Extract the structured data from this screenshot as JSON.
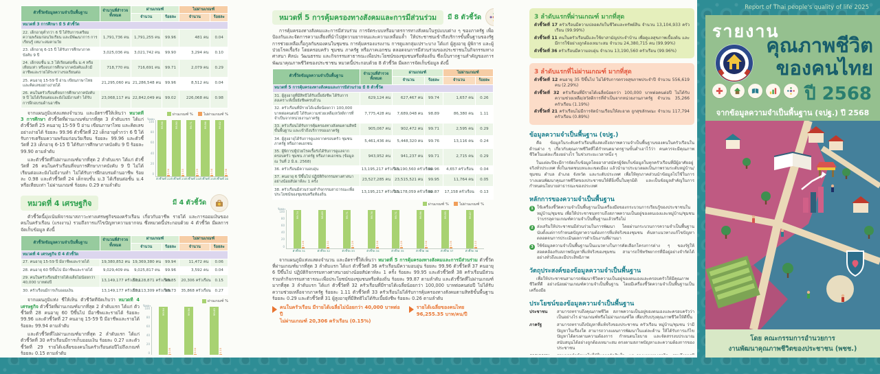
{
  "colors": {
    "pattern_teal": "#2e8d95",
    "sheet": "#fbfcf8",
    "cover_green": "#95c08f",
    "accent_green": "#2fa14f",
    "accent_teal": "#1b7f8d",
    "bar_pass": "#a8d272",
    "bar_fail": "#f09f5a",
    "callout_orange": "#e8732f",
    "section_lavender": "#dcd6ee"
  },
  "tables": {
    "headers": {
      "indicator": "ตัวชี้วัดข้อมูลความจำเป็นพื้นฐาน",
      "total": "จำนวนที่สำรวจทั้งหมด",
      "pass": "ผ่านเกณฑ์",
      "fail": "ไม่ผ่านเกณฑ์",
      "count": "จำนวน",
      "percent": "ร้อยละ"
    },
    "t3edu": {
      "section": "หมวดที่ 3 การศึกษา มี 5 ตัวชี้วัด",
      "rows": [
        [
          "22. เด็กอายุต่ำกว่า 6 ปี ได้รับการเตรียมความพร้อมก่อนวัยเรียน และมีพัฒนาการ การเรียนรู้ เหมาะสมตามวัย",
          "1,791,736 คน",
          "1,791,255 คน",
          "99.96",
          "481 คน",
          "0.04"
        ],
        [
          "23. เด็กอายุ 6-15 ปี ได้รับการศึกษาภาคบังคับ 9 ปี",
          "3,025,036 คน",
          "3,021,742 คน",
          "99.90",
          "3,294 คน",
          "0.10"
        ],
        [
          "24. เด็กจบชั้น ม.3 ได้เรียนต่อชั้น ม.4 หรือเทียบเท่า หรือจบการศึกษาภาคบังคับแล้วมีอาชีพและรายได้ระหว่างรอเรียนต่อ",
          "718,770 คน",
          "716,691 คน",
          "99.71",
          "2,079 คน",
          "0.29"
        ],
        [
          "25. คนอายุ 15-59 ปี อ่าน เขียนภาษาไทย และคิดเลขอย่างง่ายได้",
          "21,295,060 คน",
          "21,286,548 คน",
          "99.96",
          "8,512 คน",
          "0.04"
        ],
        [
          "26. คนในครัวเรือนที่จบการศึกษาภาคบังคับ 9 ปี ไม่ได้เรียนต่อและยังไม่มีงานทำ ได้รับการฝึกอบรมด้านอาชีพ",
          "23,068,117 คน",
          "22,842,049 คน",
          "99.02",
          "226,068 คน",
          "0.98"
        ]
      ]
    },
    "t4econ": {
      "section": "หมวดที่ 4 เศรษฐกิจ มี 4 ตัวชี้วัด",
      "rows": [
        [
          "27. คนอายุ 15-59 ปี มีอาชีพและรายได้",
          "19,380,852 คน",
          "19,369,380 คน",
          "99.94",
          "11,472 คน",
          "0.06"
        ],
        [
          "28. คนอายุ 60 ปีขึ้นไป มีอาชีพและรายได้",
          "9,029,409 คน",
          "9,025,817 คน",
          "99.96",
          "3,592 คน",
          "0.04"
        ],
        [
          "29. คนในครัวเรือนมีรายได้เฉลี่ยไม่น้อยกว่า 40,000 บาทต่อปี",
          "13,149,177 ครัวเรือน",
          "13,128,871 ครัวเรือน",
          "99.85",
          "20,306 ครัวเรือน",
          "0.15"
        ],
        [
          "30. ครัวเรือนมีการเก็บออมเงิน",
          "13,149,177 ครัวเรือน",
          "13,113,309 ครัวเรือน",
          "99.73",
          "35,868 ครัวเรือน",
          "0.27"
        ]
      ]
    },
    "t5social": {
      "section": "หมวดที่ 5 การคุ้มครองทางสังคมและการมีส่วนร่วม มี 8 ตัวชี้วัด",
      "rows": [
        [
          "31. ผู้สูงอายุที่มีสิทธิได้รับเบี้ยยังชีพ ได้รับการสงเคราะห์เบี้ยยังชีพครบถ้วน",
          "629,124 คน",
          "627,467 คน",
          "99.74",
          "1,657 คน",
          "0.26"
        ],
        [
          "32. ครัวเรือนที่มีรายได้เฉลี่ยน้อยกว่า 100,000 บาทต่อคนต่อปี ได้รับความช่วยเหลือ/สวัสดิการที่จำเป็นจากหน่วยงานภาครัฐ",
          "7,775,428 คน",
          "7,689,048 คน",
          "98.89",
          "86,380 คน",
          "1.11"
        ],
        [
          "33. ครัวเรือนได้รับการคุ้มครองทางสังคมตามสิทธิขั้นพื้นฐาน และเข้าถึงบริการของภาครัฐ",
          "905,067 คน",
          "902,472 คน",
          "99.71",
          "2,595 คน",
          "0.29"
        ],
        [
          "34. ผู้สูงอายุได้รับการดูแลจากครอบครัว ชุมชน ภาครัฐ หรือภาคเอกชน",
          "5,461,436 คน",
          "5,448,320 คน",
          "99.76",
          "13,116 คน",
          "0.24"
        ],
        [
          "35. ผู้พิการ/ผู้ป่วยโรคเรื้อรังได้รับการดูแลจากครอบครัว ชุมชน ภาครัฐ หรือภาคเอกชน (ข้อมูล ณ วันที่ 2 มิ.ย. 2568)",
          "943,952 คน",
          "941,237 คน",
          "99.71",
          "2,715 คน",
          "0.29"
        ],
        [
          "36. ครัวเรือนมีความอบอุ่น",
          "13,195,217 ครัวเรือน",
          "13,190,560 ครัวเรือน",
          "99.96",
          "4,657 ครัวเรือน",
          "0.04"
        ],
        [
          "37. คนอายุ 6 ปีขึ้นไป ปฏิบัติกิจกรรมทางศาสนาอย่างน้อยสัปดาห์ละ 1 ครั้ง",
          "23,527,285 คน",
          "23,515,521 คน",
          "99.95",
          "11,764 คน",
          "0.05"
        ],
        [
          "38. ครัวเรือนมีส่วนร่วมทำกิจกรรมสาธารณะเพื่อประโยชน์ของชุมชนหรือท้องถิ่น",
          "13,195,217 ครัวเรือน",
          "13,178,059 ครัวเรือน",
          "99.87",
          "17,158 ครัวเรือน",
          "0.13"
        ]
      ]
    }
  },
  "charts": {
    "c3edu": {
      "axis_title": "ร้อยละ",
      "ticks": [
        100,
        80,
        60,
        40,
        20,
        0
      ],
      "legend_pass": "ผ่านเกณฑ์ %",
      "legend_fail": "ไม่ผ่านเกณฑ์ %",
      "labels": [
        "ตัวชี้วัดที่ 22",
        "ตัวชี้วัดที่ 23",
        "ตัวชี้วัดที่ 24",
        "ตัวชี้วัดที่ 25",
        "ตัวชี้วัดที่ 26"
      ],
      "pass": [
        99.96,
        99.9,
        99.71,
        99.96,
        99.02
      ],
      "fail": [
        0.04,
        0.1,
        0.29,
        0.04,
        0.98
      ]
    },
    "c4econ": {
      "axis_title": "ร้อยละ",
      "ticks": [
        100,
        80,
        60,
        40,
        20,
        0
      ],
      "legend_pass": "ผ่านเกณฑ์ %",
      "labels": [
        "ตัวชี้วัด 27",
        "ตัวชี้วัด 28",
        "ตัวชี้วัด 29"
      ],
      "pass": [
        99.94,
        99.96,
        99.85
      ],
      "fail": [
        0.06,
        0.04,
        0.15
      ]
    },
    "c5social": {
      "axis_title": "ร้อยละ",
      "ticks": [
        100,
        80,
        60,
        40,
        20,
        0
      ],
      "legend_pass": "ผ่านเกณฑ์ %",
      "legend_fail": "ไม่ผ่านเกณฑ์ %",
      "labels": [
        "ตัวชี้วัด 31",
        "ตัวชี้วัด 32",
        "ตัวชี้วัด 33",
        "ตัวชี้วัด 34",
        "ตัวชี้วัด 35",
        "ตัวชี้วัด 36",
        "ตัวชี้วัด 37",
        "ตัวชี้วัด 38"
      ],
      "pass": [
        99.74,
        98.89,
        99.71,
        99.76,
        99.71,
        99.96,
        99.95,
        99.87
      ],
      "fail": [
        0.26,
        1.11,
        0.29,
        0.24,
        0.29,
        0.04,
        0.05,
        0.13
      ]
    }
  },
  "panel1": {
    "edu_lead": "จากแผนภูมิแท่งแสดงจำนวน และอัตราชี้ให้เห็นว่า ",
    "edu_hl": "หมวดที่ 3 การศึกษา",
    "edu_rest": " ตัวชี้วัดที่ผ่านเกณฑ์มากที่สุด 3 ลำดับแรก ได้แก่ ตัวชี้วัดที่ 25 คนอายุ 15-59 ปี อ่าน เขียนภาษาไทย และคิดเลขอย่างง่ายได้ ร้อยละ 99.96 ตัวชี้วัดที่ 22 เด็กอายุต่ำกว่า 6 ปี ได้รับการเตรียมความพร้อมก่อนวัยเรียน ร้อยละ 99.96 และตัวชี้วัดที่ 23 เด็กอายุ 6-15 ปี ได้รับการศึกษาภาคบังคับ 9 ปี ร้อยละ 99.90 ตามลำดับ",
    "edu_summary2": "และตัวชี้วัดที่ไม่ผ่านเกณฑ์มากที่สุด 2 ลำดับแรก ได้แก่ ตัวชี้วัดที่ 26 คนในครัวเรือนที่จบการศึกษาภาคบังคับ 9 ปี ไม่ได้เรียนต่อและยังไม่มีงานทำ ไม่ได้รับการฝึกอบรมด้านอาชีพ ร้อยละ 0.98 และตัวชี้วัดที่ 24 เด็กจบชั้น ม.3 ได้เรียนต่อชั้น ม.4 หรือเทียบเท่า ไม่ผ่านเกณฑ์ ร้อยละ 0.29 ตามลำดับ",
    "econ_heading": "หมวดที่ 4 เศรษฐกิจ",
    "econ_badge": "มี 4 ตัวชี้วัด",
    "econ_intro": "ตัวชี้วัดนี้มุ่งเน้นพิจารณาสภาวะทางเศรษฐกิจของครัวเรือน เกี่ยวกับอาชีพ รายได้ และการออมเงินของคนในครัวเรือน (แรงงาน) รวมถึงการแก้ไขปัญหาความยากจน ซึ่งหมวดนี้ประกอบด้วย 4 ตัวชี้วัด มีผลการจัดเก็บข้อมูล ดังนี้",
    "econ_lead": "จากแผนภูมิแท่ง ชี้ให้เห็น ตัวชี้วัดที่จัดเก็บว่า ",
    "econ_hl": "หมวดที่ 4 เศรษฐกิจ",
    "econ_rest": " ตัวชี้วัดที่ผ่านเกณฑ์มากที่สุด 2 ลำดับแรก ได้แก่ ตัวชี้วัดที่ 28 คนอายุ 60 ปีขึ้นไป มีอาชีพและรายได้ ร้อยละ 99.96 และตัวชี้วัดที่ 27 คนอายุ 15-59 ปี มีอาชีพและรายได้ ร้อยละ 99.94 ตามลำดับ",
    "econ_summary2": "และตัวชี้วัดที่ไม่ผ่านเกณฑ์มากที่สุด 2 ลำดับแรก ได้แก่ ตัวชี้วัดที่ 30 ครัวเรือนมีการเก็บออมเงิน ร้อยละ 0.27 และตัวชี้วัดที่ 29 รายได้เฉลี่ยของคนในครัวเรือนต่อปีไม่ถึงเกณฑ์ ร้อยละ 0.15 ตามลำดับ"
  },
  "panel2": {
    "heading": "หมวดที่ 5 การคุ้มครองทางสังคมและการมีส่วนร่วม",
    "badge": "มี 8 ตัวชี้วัด",
    "intro": "การคุ้มครองทางสังคมและการมีส่วนร่วม การจัดระบบหรือมาตรการทางสังคมในรูปแบบต่าง ๆ ของภาครัฐ เพื่อป้องกันและจัดการความเสี่ยงที่นำไปสู่ความยากจนและความเหลื่อมล้ำ ให้ประชาชนเข้าถึงบริการขั้นพื้นฐานของรัฐ การช่วยเหลือเกื้อกูลกันของคนในชุมชน การคุ้มครองแรงงาน การดูแลกลุ่มเปราะบาง ได้แก่ ผู้สูงอายุ ผู้พิการ และผู้ป่วยโรคเรื้อรัง โดยครอบครัว ชุมชน ภาครัฐ หรือภาคเอกชน ตลอดจนการมีส่วนร่วมของประชาชนในกิจกรรมทางศาสนา ศิลปะ วัฒนธรรม และกิจกรรมสาธารณะเพื่อประโยชน์ของชุมชนหรือท้องถิ่น ซึ่งเป็นรากฐานสำคัญของการพัฒนาคุณภาพชีวิตของประชาชน หมวดนี้ประกอบด้วย 8 ตัวชี้วัด มีผลการจัดเก็บข้อมูล ดังนี้",
    "sum_lead": "จากแผนภูมิแท่งแสดงจำนวน และอัตราชี้ให้เห็นว่า ",
    "sum_hl": "หมวดที่ 5 การคุ้มครองทางสังคมและ",
    "sum_hl2": "การมีส่วนร่วม",
    "sum_rest": " ตัวชี้วัดที่ผ่านเกณฑ์มากที่สุด 3 ลำดับแรก ได้แก่ ตัวชี้วัดที่ 36 ครัวเรือนมีความอบอุ่น ร้อยละ 99.96 ตัวชี้วัดที่ 37 คนอายุ 6 ปีขึ้นไป ปฏิบัติกิจกรรมทางศาสนาอย่างน้อยสัปดาห์ละ 1 ครั้ง ร้อยละ 99.95 และตัวชี้วัดที่ 38 ครัวเรือนมีส่วนร่วมทำกิจกรรมสาธารณะเพื่อประโยชน์ของชุมชนหรือท้องถิ่น ร้อยละ 99.87 ตามลำดับ และตัวชี้วัดที่ไม่ผ่านเกณฑ์มากที่สุด 3 ลำดับแรก ได้แก่ ตัวชี้วัดที่ 32 ครัวเรือนที่มีรายได้เฉลี่ยน้อยกว่า 100,000 บาทต่อคนต่อปี ไม่ได้รับความช่วยเหลือจากภาครัฐ ร้อยละ 1.11 ตัวชี้วัดที่ 33 ครัวเรือนไม่ได้รับการคุ้มครองทางสังคมตามสิทธิขั้นพื้นฐาน ร้อยละ 0.29 และตัวชี้วัดที่ 31 ผู้สูงอายุที่มีสิทธิไม่ได้รับเบี้ยยังชีพ ร้อยละ 0.26 ตามลำดับ",
    "callout1_line1": "คนในครัวเรือน มีรายได้เฉลี่ยไม่น้อยกว่า 40,000 บาทต่อปี",
    "callout1_line2": "ไม่ผ่านเกณฑ์ 20,306 ครัวเรือน (0.15%)",
    "callout2_line1": "รายได้เฉลี่ยของคนไทย",
    "callout2_line2": "96,255.35 บาท/คน/ปี"
  },
  "panel3": {
    "top_pass_title": "3 ลำดับแรกที่ผ่านเกณฑ์ มากที่สุด",
    "top_pass_items": [
      {
        "tag": "ตัวชี้วัดที่ 17",
        "text": "ครัวเรือนมีความปลอดภัยในชีวิตและทรัพย์สิน จำนวน 13,104,933 ครัวเรือน (99.99%)"
      },
      {
        "tag": "ตัวชี้วัดที่ 11",
        "text": "คนในครัวเรือนมีและใช้ยาสามัญประจำบ้าน เพื่อดูแลสุขภาพเบื้องต้น และมีการใช้อย่างถูกต้องเหมาะสม จำนวน 24,380,715 คน (99.99%)"
      },
      {
        "tag": "ตัวชี้วัดที่ 36",
        "text": "ครัวเรือนมีความอบอุ่น จำนวน 13,190,560 ครัวเรือน (99.96%)"
      }
    ],
    "top_fail_title": "3 ลำดับแรกที่ไม่ผ่านเกณฑ์ มากที่สุด",
    "top_fail_items": [
      {
        "tag": "ตัวชี้วัดที่ 12",
        "text": "คนอายุ 35 ปีขึ้นไป ไม่ได้รับการตรวจสุขภาพประจำปี จำนวน 556,619 คน (2.29%)"
      },
      {
        "tag": "ตัวชี้วัดที่ 32",
        "text": "ครัวเรือนที่มีรายได้เฉลี่ยน้อยกว่า 100,000 บาทต่อคนต่อปี ไม่ได้รับความช่วยเหลือ/สวัสดิการที่จำเป็นจากหน่วยงานภาครัฐ จำนวน 35,266 ครัวเรือน (1.19%)"
      },
      {
        "tag": "ตัวชี้วัดที่ 21",
        "text": "ครัวเรือนไม่มีการจัดบ้านเรือนให้สะอาด ถูกสุขลักษณะ จำนวน 117,794 ครัวเรือน (0.89%)"
      }
    ],
    "bmn_title": "ข้อมูลความจำเป็นพื้นฐาน (จปฐ.)",
    "bmn_p1": "คือ ข้อมูลในระดับครัวเรือนที่แสดงถึงสภาพความจำเป็นพื้นฐานของคนในครัวเรือนในด้านต่าง ๆ เกี่ยวกับคุณภาพชีวิตที่ได้กำหนดมาตรฐานขั้นต่ำเอาไว้ว่า คนควรจะมีคุณภาพชีวิตในแต่ละเรื่องอย่างไร ในช่วงระยะเวลาหนึ่ง ๆ",
    "bmn_p2": "ในแต่ละปีจะมีการจัดเก็บข้อมูลโดยอาสาสมัครผู้จัดเก็บข้อมูลในทุกครัวเรือนที่มีผู้อาศัยอยู่จริงทั่วประเทศ ทั้งในเขตชนบทและเขตเมือง แล้วนำมาประมวลผลเป็นภาพรวมระดับหมู่บ้าน/ชุมชน ตำบล อำเภอ จังหวัด และระดับประเทศ เพื่อให้ทุกภาคส่วนนำข้อมูลไปใช้ในการวางแผนพัฒนาคุณภาพชีวิตของประชาชนให้ดียิ่งขึ้นในทุกมิติ และเป็นข้อมูลสำคัญในการกำหนดนโยบายสาธารณะของประเทศ",
    "principles_title": "หลักการของความจำเป็นพื้นฐาน",
    "principles": [
      {
        "n": "1",
        "text": "ใช้เครื่องชี้วัดความจำเป็นพื้นฐานเป็นเครื่องมือของกระบวนการเรียนรู้ของประชาชนในหมู่บ้าน/ชุมชน เพื่อให้ประชาชนทราบถึงสภาพความเป็นอยู่ของตนเองและหมู่บ้าน/ชุมชน ว่าบรรลุตามเกณฑ์ความจำเป็นพื้นฐานแล้วหรือไม่"
      },
      {
        "n": "2",
        "text": "ส่งเสริมให้ประชาชนมีส่วนร่วมในการพัฒนา โดยผ่านกระบวนการความจำเป็นพื้นฐาน นับตั้งแต่การกำหนดปัญหาความต้องการที่แท้จริงของชุมชน ค้นหาแนวทางแก้ไขปัญหา ตลอดจนการประเมินผลการดำเนินงานที่ผ่านมา"
      },
      {
        "n": "3",
        "text": "ใช้ข้อมูลความจำเป็นพื้นฐานเป็นแนวทางในการคัดเลือกโครงการต่าง ๆ ของรัฐให้สอดคล้องกับสภาพปัญหาที่แท้จริงของชุมชน สามารถใช้ทรัพยากรที่มีอยู่อย่างจำกัดได้อย่างทั่วถึงและมีประสิทธิภาพ"
      }
    ],
    "objective_title": "วัตถุประสงค์ของข้อมูลความจำเป็นพื้นฐาน",
    "objective_text": "เพื่อให้ประชาชนสามารถพัฒนาชีวิตความเป็นอยู่ของตนเองและครอบครัวให้มีคุณภาพชีวิตที่ดี อย่างน้อยผ่านเกณฑ์ความจำเป็นพื้นฐาน โดยมีเครื่องชี้วัดความจำเป็นพื้นฐานเป็นเครื่องมือ",
    "benefits_title": "ประโยชน์ของข้อมูลความจำเป็นพื้นฐาน",
    "benefits": [
      {
        "term": "ประชาชน",
        "text": "สามารถทราบถึงคุณภาพชีวิต สภาพความเป็นอยู่ของตนเองและครอบครัวว่าเป็นอย่างไร ผ่านเกณฑ์หรือไม่ผ่านเกณฑ์ใด เพื่อปรับปรุงคุณภาพชีวิตให้ดีขึ้น"
      },
      {
        "term": "ภาครัฐ",
        "text": "สามารถทราบถึงปัญหาที่แท้จริงของประชาชน ครัวเรือน หมู่บ้าน/ชุมชน ว่ามีปัญหาในเรื่องใด สามารถวางแผนการพัฒนาในแต่ละด้าน ให้ได้รับการแก้ไขปัญหาได้ตรงตามความต้องการ กำหนดนโยบาย และจัดสรรงบประมาณสนับสนุนได้อย่างถูกต้องเหมาะสม ตรงตามสภาพปัญหาและความต้องการของประชาชน"
      },
      {
        "term": "ภาคเอกชน",
        "text": "สามารถนำข้อมูลไปใช้ในการตัดสินใจ และวางแผนทางธุรกิจ รวมถึงการมีส่วนร่วมในการพัฒนาคุณภาพชีวิตของประชาชนในทุกพื้นที่"
      }
    ]
  },
  "cover": {
    "report_line": "Report of Thai people's quality of life 2025",
    "kicker": "รายงาน",
    "logo_name": "กรมการพัฒนาชุมชน",
    "title_line1": "คุณภาพชีวิต",
    "title_line2": "ของคนไทย",
    "year": "ปี 2568",
    "subtitle": "จากข้อมูลความจำเป็นพื้นฐาน (จปฐ.) ปี 2568",
    "icons": [
      "health-icon",
      "housing-icon",
      "education-icon",
      "economy-icon",
      "participation-icon"
    ],
    "footer_line1": "โดย คณะกรรมการอำนวยการ",
    "footer_line2": "งานพัฒนาคุณภาพชีวิตของประชาชน (พชช.)"
  }
}
